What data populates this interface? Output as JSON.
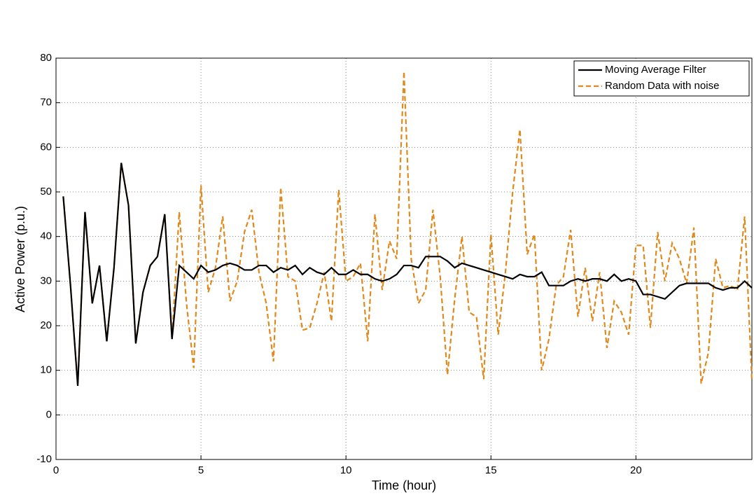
{
  "chart_data": {
    "type": "line",
    "xlabel": "Time (hour)",
    "ylabel": "Active Power (p.u.)",
    "x": [
      0.25,
      0.5,
      0.75,
      1,
      1.25,
      1.5,
      1.75,
      2,
      2.25,
      2.5,
      2.75,
      3,
      3.25,
      3.5,
      3.75,
      4,
      4.25,
      4.5,
      4.75,
      5,
      5.25,
      5.5,
      5.75,
      6,
      6.25,
      6.5,
      6.75,
      7,
      7.25,
      7.5,
      7.75,
      8,
      8.25,
      8.5,
      8.75,
      9,
      9.25,
      9.5,
      9.75,
      10,
      10.25,
      10.5,
      10.75,
      11,
      11.25,
      11.5,
      11.75,
      12,
      12.25,
      12.5,
      12.75,
      13,
      13.25,
      13.5,
      13.75,
      14,
      14.25,
      14.5,
      14.75,
      15,
      15.25,
      15.5,
      15.75,
      16,
      16.25,
      16.5,
      16.75,
      17,
      17.25,
      17.5,
      17.75,
      18,
      18.25,
      18.5,
      18.75,
      19,
      19.25,
      19.5,
      19.75,
      20,
      20.25,
      20.5,
      20.75,
      21,
      21.25,
      21.5,
      21.75,
      22,
      22.25,
      22.5,
      22.75,
      23,
      23.25,
      23.5,
      23.75,
      24
    ],
    "series": [
      {
        "name": "Random Data with noise",
        "color": "#e0891c",
        "dash": true,
        "values": [
          49,
          29,
          6.5,
          45.5,
          25,
          33.5,
          16.5,
          33,
          56.5,
          47,
          16,
          27.5,
          33.5,
          35.5,
          45,
          17,
          45.5,
          25,
          10.5,
          51.5,
          27.5,
          33,
          44.5,
          25.5,
          30,
          41,
          46,
          32,
          25,
          12,
          51,
          31,
          30,
          19,
          19.5,
          25,
          32,
          21,
          50.5,
          30,
          31,
          34,
          16.5,
          45,
          28,
          39,
          35,
          77,
          35,
          25,
          28,
          46,
          31,
          9,
          26,
          40,
          23,
          22,
          8,
          40.5,
          18,
          32,
          50,
          64,
          36,
          40.5,
          10,
          17,
          29,
          31,
          41.5,
          22,
          33,
          21,
          32,
          15,
          25.5,
          23,
          18,
          38,
          38,
          19.5,
          41,
          30,
          38.5,
          35,
          29.5,
          42,
          7,
          14,
          35,
          28.5,
          29,
          28,
          44.5,
          7.5
        ]
      },
      {
        "name": "Moving Average Filter",
        "color": "#000000",
        "dash": false,
        "values": [
          49,
          29,
          6.5,
          45.5,
          25,
          33.5,
          16.5,
          33,
          56.5,
          47,
          16,
          27.5,
          33.5,
          35.5,
          45,
          17,
          33.5,
          32,
          30.5,
          33.5,
          32,
          32.5,
          33.5,
          34,
          33.5,
          32.5,
          32.5,
          33.5,
          33.5,
          32,
          33,
          32.5,
          33.5,
          31.5,
          33,
          32,
          31.5,
          33,
          31.5,
          31.5,
          32.5,
          31.5,
          31.5,
          30.5,
          30,
          30.5,
          31.5,
          33.5,
          33.5,
          33,
          35.5,
          35.5,
          35.5,
          34.5,
          33,
          34,
          33.5,
          33,
          32.5,
          32,
          31.5,
          31,
          30.5,
          31.5,
          31,
          31,
          32,
          29,
          29,
          29,
          30,
          30.5,
          30,
          30.5,
          30.5,
          30,
          31.5,
          30,
          30.5,
          30,
          27,
          27,
          26.5,
          26,
          27.5,
          29,
          29.5,
          29.5,
          29.5,
          29.5,
          28.5,
          28,
          28.5,
          28.5,
          30,
          28.5
        ]
      }
    ],
    "xlim": [
      0,
      24
    ],
    "xticks": [
      0,
      5,
      10,
      15,
      20
    ],
    "ylim": [
      -10,
      80
    ],
    "yticks": [
      -10,
      0,
      10,
      20,
      30,
      40,
      50,
      60,
      70,
      80
    ],
    "grid": true,
    "legend": "upper right"
  }
}
